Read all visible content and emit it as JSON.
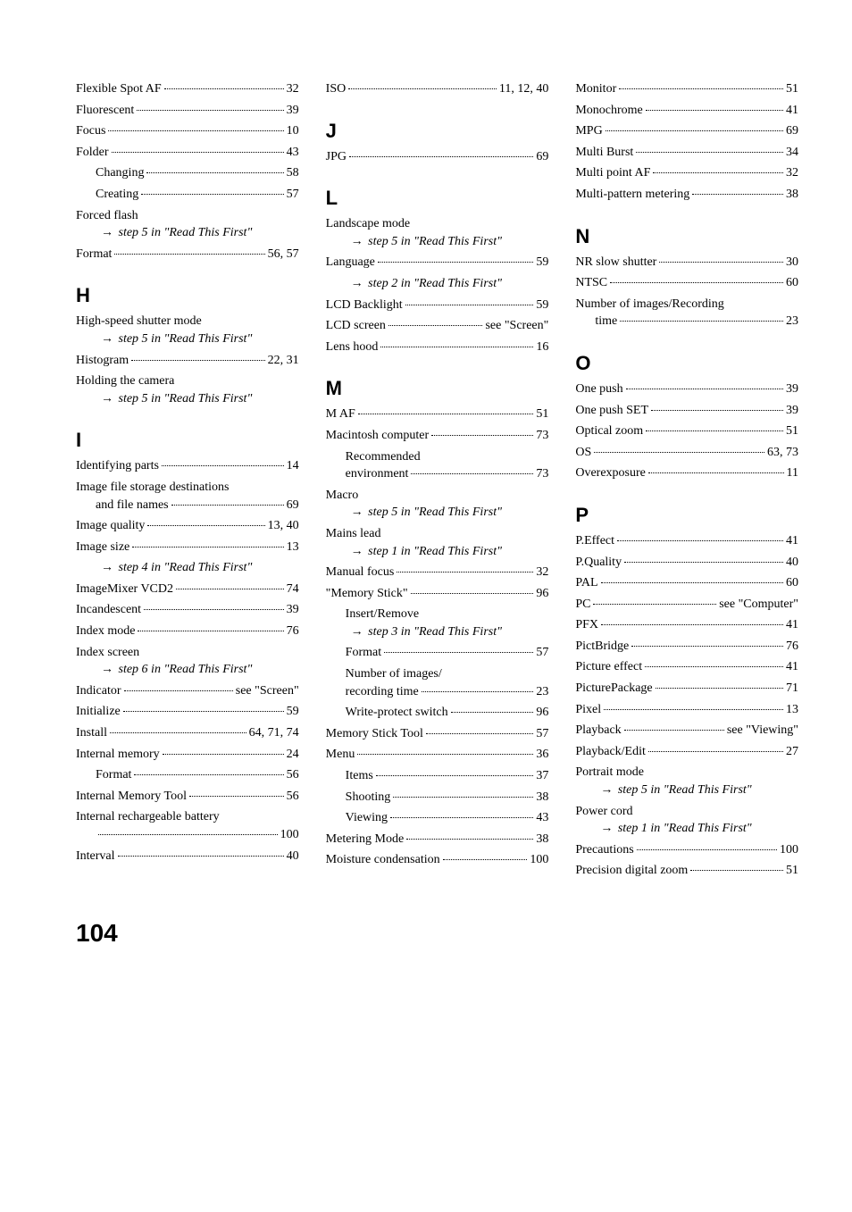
{
  "pageNumber": "104",
  "columns": [
    {
      "groups": [
        {
          "letter": null,
          "entries": [
            {
              "type": "dotted",
              "label": "Flexible Spot AF",
              "page": "32"
            },
            {
              "type": "dotted",
              "label": "Fluorescent",
              "page": "39"
            },
            {
              "type": "dotted",
              "label": "Focus",
              "page": "10"
            },
            {
              "type": "dotted",
              "label": "Folder",
              "page": "43"
            },
            {
              "type": "dotted",
              "label": "Changing",
              "page": "58",
              "indent": 1
            },
            {
              "type": "dotted",
              "label": "Creating",
              "page": "57",
              "indent": 1
            },
            {
              "type": "plain",
              "label": "Forced flash"
            },
            {
              "type": "arrow",
              "text": "step 5 in \"Read This First\""
            },
            {
              "type": "dotted",
              "label": "Format",
              "page": "56, 57"
            }
          ]
        },
        {
          "letter": "H",
          "entries": [
            {
              "type": "plain",
              "label": "High-speed shutter mode"
            },
            {
              "type": "arrow",
              "text": "step 5 in \"Read This First\""
            },
            {
              "type": "dotted",
              "label": "Histogram",
              "page": "22, 31"
            },
            {
              "type": "plain",
              "label": "Holding the camera"
            },
            {
              "type": "arrow",
              "text": "step 5 in \"Read This First\""
            }
          ]
        },
        {
          "letter": "I",
          "entries": [
            {
              "type": "dotted",
              "label": "Identifying parts",
              "page": "14"
            },
            {
              "type": "plain",
              "label": "Image file storage destinations"
            },
            {
              "type": "dotted",
              "label": "and file names",
              "page": "69",
              "indent": 1
            },
            {
              "type": "dotted",
              "label": "Image quality",
              "page": "13, 40"
            },
            {
              "type": "dotted",
              "label": "Image size",
              "page": "13"
            },
            {
              "type": "arrow",
              "text": "step 4 in \"Read This First\""
            },
            {
              "type": "dotted",
              "label": "ImageMixer VCD2",
              "page": "74"
            },
            {
              "type": "dotted",
              "label": "Incandescent",
              "page": "39"
            },
            {
              "type": "dotted",
              "label": "Index mode",
              "page": "76"
            },
            {
              "type": "plain",
              "label": "Index screen"
            },
            {
              "type": "arrow",
              "text": "step 6 in \"Read This First\""
            },
            {
              "type": "see",
              "label": "Indicator",
              "see": "see \"Screen\""
            },
            {
              "type": "dotted",
              "label": "Initialize",
              "page": "59"
            },
            {
              "type": "dotted",
              "label": "Install",
              "page": "64, 71, 74"
            },
            {
              "type": "dotted",
              "label": "Internal memory",
              "page": "24"
            },
            {
              "type": "dotted",
              "label": "Format",
              "page": "56",
              "indent": 1
            },
            {
              "type": "dotted",
              "label": "Internal Memory Tool",
              "page": "56"
            },
            {
              "type": "plain",
              "label": "Internal rechargeable battery"
            },
            {
              "type": "dotted",
              "label": "",
              "page": "100",
              "indent": 1
            },
            {
              "type": "dotted",
              "label": "Interval",
              "page": "40"
            }
          ]
        }
      ]
    },
    {
      "groups": [
        {
          "letter": null,
          "entries": [
            {
              "type": "dotted",
              "label": "ISO",
              "page": "11, 12, 40"
            }
          ]
        },
        {
          "letter": "J",
          "entries": [
            {
              "type": "dotted",
              "label": "JPG",
              "page": "69"
            }
          ]
        },
        {
          "letter": "L",
          "entries": [
            {
              "type": "plain",
              "label": "Landscape mode"
            },
            {
              "type": "arrow",
              "text": "step 5 in \"Read This First\""
            },
            {
              "type": "dotted",
              "label": "Language",
              "page": "59"
            },
            {
              "type": "arrow",
              "text": "step 2 in \"Read This First\""
            },
            {
              "type": "dotted",
              "label": "LCD Backlight",
              "page": "59"
            },
            {
              "type": "see",
              "label": "LCD screen",
              "see": "see \"Screen\""
            },
            {
              "type": "dotted",
              "label": "Lens hood",
              "page": "16"
            }
          ]
        },
        {
          "letter": "M",
          "entries": [
            {
              "type": "dotted",
              "label": "M AF",
              "page": "51"
            },
            {
              "type": "dotted",
              "label": "Macintosh computer",
              "page": "73"
            },
            {
              "type": "plain",
              "label": "Recommended",
              "indent": 1
            },
            {
              "type": "dotted",
              "label": "environment",
              "page": "73",
              "indent": 1
            },
            {
              "type": "plain",
              "label": "Macro"
            },
            {
              "type": "arrow",
              "text": "step 5 in \"Read This First\""
            },
            {
              "type": "plain",
              "label": "Mains lead"
            },
            {
              "type": "arrow",
              "text": "step 1 in \"Read This First\""
            },
            {
              "type": "dotted",
              "label": "Manual focus",
              "page": "32"
            },
            {
              "type": "dotted",
              "label": "\"Memory Stick\"",
              "page": "96"
            },
            {
              "type": "plain",
              "label": "Insert/Remove",
              "indent": 1
            },
            {
              "type": "arrow",
              "text": "step 3 in \"Read This First\""
            },
            {
              "type": "dotted",
              "label": "Format",
              "page": "57",
              "indent": 1
            },
            {
              "type": "plain",
              "label": "Number of images/",
              "indent": 1
            },
            {
              "type": "dotted",
              "label": "recording time",
              "page": "23",
              "indent": 1
            },
            {
              "type": "dotted",
              "label": "Write-protect switch",
              "page": "96",
              "indent": 1
            },
            {
              "type": "dotted",
              "label": "Memory Stick Tool",
              "page": "57"
            },
            {
              "type": "dotted",
              "label": "Menu",
              "page": "36"
            },
            {
              "type": "dotted",
              "label": "Items",
              "page": "37",
              "indent": 1
            },
            {
              "type": "dotted",
              "label": "Shooting",
              "page": "38",
              "indent": 1
            },
            {
              "type": "dotted",
              "label": "Viewing",
              "page": "43",
              "indent": 1
            },
            {
              "type": "dotted",
              "label": "Metering Mode",
              "page": "38"
            },
            {
              "type": "dotted",
              "label": "Moisture condensation",
              "page": "100"
            }
          ]
        }
      ]
    },
    {
      "groups": [
        {
          "letter": null,
          "entries": [
            {
              "type": "dotted",
              "label": "Monitor",
              "page": "51"
            },
            {
              "type": "dotted",
              "label": "Monochrome",
              "page": "41"
            },
            {
              "type": "dotted",
              "label": "MPG",
              "page": "69"
            },
            {
              "type": "dotted",
              "label": "Multi Burst",
              "page": "34"
            },
            {
              "type": "dotted",
              "label": "Multi point AF",
              "page": "32"
            },
            {
              "type": "dotted",
              "label": "Multi-pattern metering",
              "page": "38"
            }
          ]
        },
        {
          "letter": "N",
          "entries": [
            {
              "type": "dotted",
              "label": "NR slow shutter",
              "page": "30"
            },
            {
              "type": "dotted",
              "label": "NTSC",
              "page": "60"
            },
            {
              "type": "plain",
              "label": "Number of images/Recording"
            },
            {
              "type": "dotted",
              "label": "time",
              "page": "23",
              "indent": 1
            }
          ]
        },
        {
          "letter": "O",
          "entries": [
            {
              "type": "dotted",
              "label": "One push",
              "page": "39"
            },
            {
              "type": "dotted",
              "label": "One push SET",
              "page": "39"
            },
            {
              "type": "dotted",
              "label": "Optical zoom",
              "page": "51"
            },
            {
              "type": "dotted",
              "label": "OS",
              "page": "63, 73"
            },
            {
              "type": "dotted",
              "label": "Overexposure",
              "page": "11"
            }
          ]
        },
        {
          "letter": "P",
          "entries": [
            {
              "type": "dotted",
              "label": "P.Effect",
              "page": "41"
            },
            {
              "type": "dotted",
              "label": "P.Quality",
              "page": "40"
            },
            {
              "type": "dotted",
              "label": "PAL",
              "page": "60"
            },
            {
              "type": "see",
              "label": "PC",
              "see": "see \"Computer\""
            },
            {
              "type": "dotted",
              "label": "PFX",
              "page": "41"
            },
            {
              "type": "dotted",
              "label": "PictBridge",
              "page": "76"
            },
            {
              "type": "dotted",
              "label": "Picture effect",
              "page": "41"
            },
            {
              "type": "dotted",
              "label": "PicturePackage",
              "page": "71"
            },
            {
              "type": "dotted",
              "label": "Pixel",
              "page": "13"
            },
            {
              "type": "see",
              "label": "Playback",
              "see": "see \"Viewing\""
            },
            {
              "type": "dotted",
              "label": "Playback/Edit",
              "page": "27"
            },
            {
              "type": "plain",
              "label": "Portrait mode"
            },
            {
              "type": "arrow",
              "text": "step 5 in \"Read This First\""
            },
            {
              "type": "plain",
              "label": "Power cord"
            },
            {
              "type": "arrow",
              "text": "step 1 in \"Read This First\""
            },
            {
              "type": "dotted",
              "label": "Precautions",
              "page": "100"
            },
            {
              "type": "dotted",
              "label": "Precision digital zoom",
              "page": "51"
            }
          ]
        }
      ]
    }
  ]
}
